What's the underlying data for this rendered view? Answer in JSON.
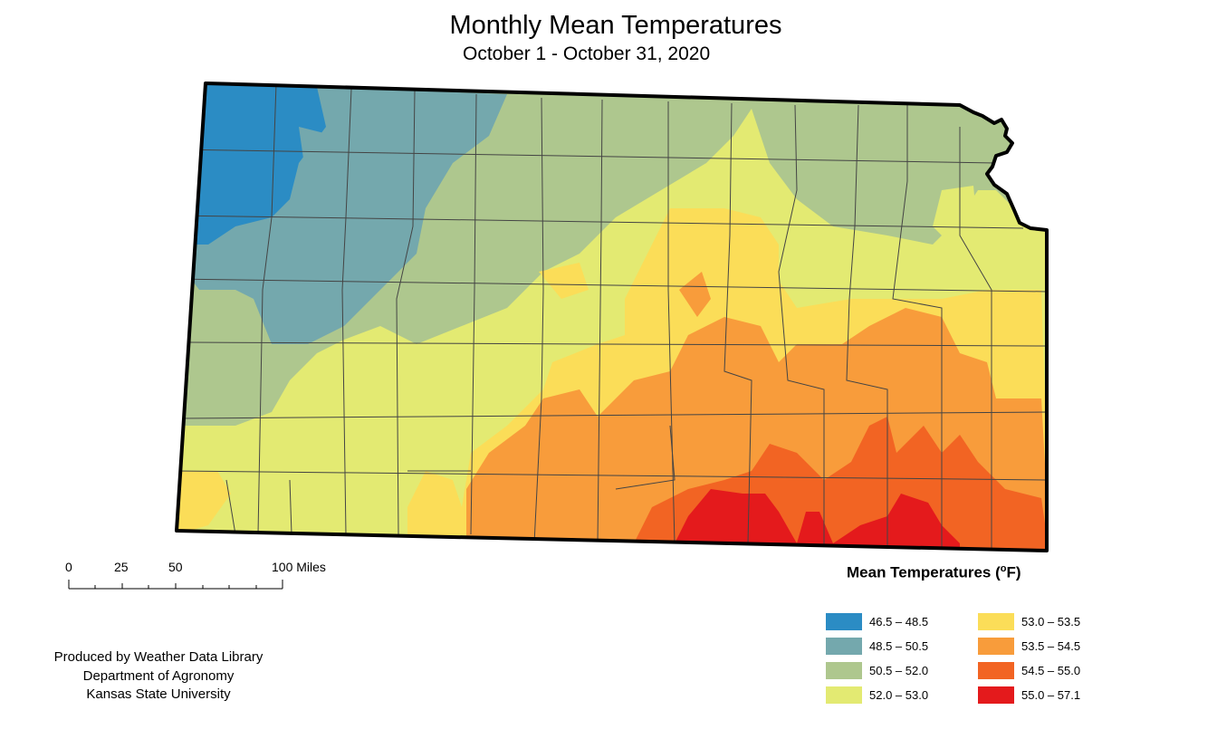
{
  "title": "Monthly Mean Temperatures",
  "subtitle": "October 1 - October 31, 2020",
  "scale": {
    "ticks": [
      "0",
      "25",
      "50",
      "100 Miles"
    ]
  },
  "legend": {
    "title": "Mean Temperatures (",
    "title_unit_sup": "o",
    "title_unit": "F)",
    "items": [
      {
        "label": "46.5 – 48.5",
        "color": "#2b8cc4"
      },
      {
        "label": "48.5 – 50.5",
        "color": "#74a8ad"
      },
      {
        "label": "50.5 – 52.0",
        "color": "#aec78e"
      },
      {
        "label": "52.0 – 53.0",
        "color": "#e3ea72"
      },
      {
        "label": "53.0 – 53.5",
        "color": "#fbdd58"
      },
      {
        "label": "53.5 – 54.5",
        "color": "#f89c3b"
      },
      {
        "label": "54.5 – 55.0",
        "color": "#f26423"
      },
      {
        "label": "55.0 – 57.1",
        "color": "#e41a1c"
      }
    ]
  },
  "credit": {
    "line1": "Produced by Weather Data Library",
    "line2": "Department of Agronomy",
    "line3": "Kansas State University"
  }
}
